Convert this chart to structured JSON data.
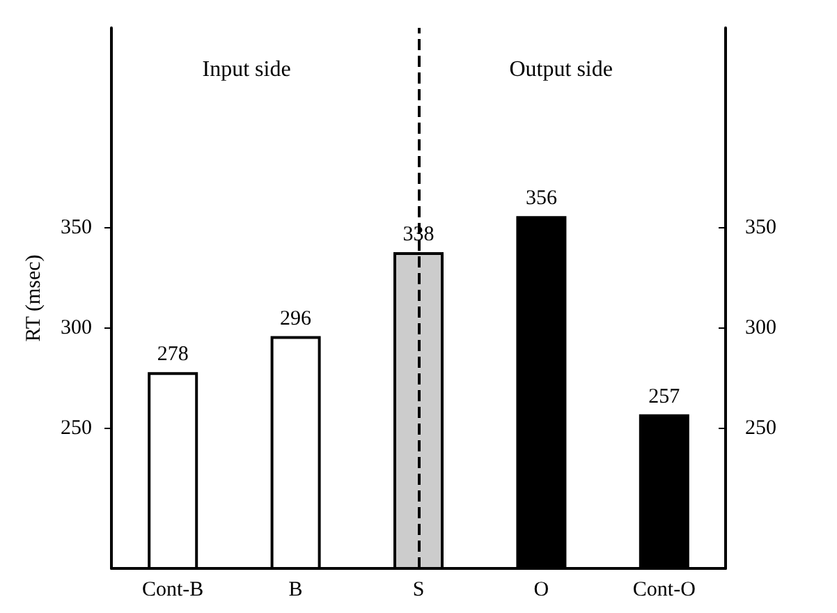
{
  "chart_data": {
    "type": "bar",
    "ylabel": "RT (msec)",
    "categories": [
      "Cont-B",
      "B",
      "S",
      "O",
      "Cont-O"
    ],
    "values": [
      278,
      296,
      338,
      356,
      257
    ],
    "colors": [
      "#ffffff",
      "#ffffff",
      "#cccccc",
      "#000000",
      "#000000"
    ],
    "ylim": [
      180,
      450
    ],
    "yticks": [
      250,
      300,
      350
    ],
    "y2lim": [
      180,
      450
    ],
    "y2ticks": [
      250,
      300,
      350
    ],
    "ref_lines": [
      {
        "axis": "x",
        "value": "S",
        "line_style": "dashed",
        "color": "#000000"
      }
    ],
    "annotations": [
      "Input side",
      "Output side"
    ],
    "data_labels": true,
    "grid": false
  }
}
